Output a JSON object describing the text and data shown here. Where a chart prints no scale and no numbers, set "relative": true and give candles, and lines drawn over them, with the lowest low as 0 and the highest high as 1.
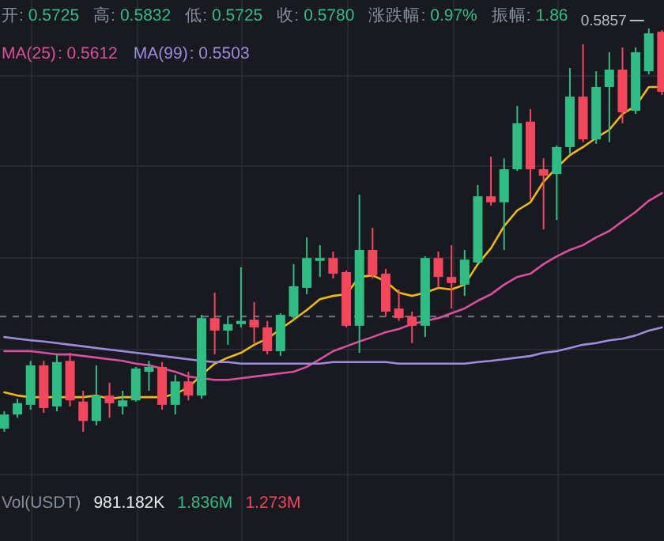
{
  "chart_data": {
    "type": "candlestick",
    "relative": true,
    "grid": true,
    "categories": [
      null,
      null,
      null,
      null,
      null,
      null,
      null,
      null,
      null,
      null,
      null,
      null,
      null,
      null,
      null,
      null,
      null,
      null,
      null,
      null,
      null,
      null,
      null,
      null,
      null,
      null,
      null,
      null,
      null,
      null,
      null,
      null,
      null,
      null,
      null,
      null,
      null,
      null,
      null,
      null,
      null,
      null,
      null,
      null,
      null,
      null,
      null,
      null,
      null,
      null,
      null
    ],
    "ohlc": [
      [
        0.008,
        0.051,
        0,
        0.043
      ],
      [
        0.043,
        0.082,
        0.035,
        0.071
      ],
      [
        0.067,
        0.176,
        0.055,
        0.165
      ],
      [
        0.165,
        0.176,
        0.047,
        0.059
      ],
      [
        0.063,
        0.192,
        0.051,
        0.173
      ],
      [
        0.176,
        0.196,
        0.063,
        0.078
      ],
      [
        0.075,
        0.102,
        0,
        0.027
      ],
      [
        0.027,
        0.165,
        0.016,
        0.09
      ],
      [
        0.09,
        0.122,
        0.035,
        0.071
      ],
      [
        0.063,
        0.102,
        0.043,
        0.078
      ],
      [
        0.078,
        0.161,
        0.075,
        0.157
      ],
      [
        0.149,
        0.176,
        0.102,
        0.161
      ],
      [
        0.161,
        0.173,
        0.055,
        0.067
      ],
      [
        0.067,
        0.141,
        0.043,
        0.125
      ],
      [
        0.125,
        0.149,
        0.078,
        0.09
      ],
      [
        0.09,
        0.29,
        0.082,
        0.282
      ],
      [
        0.282,
        0.345,
        0.192,
        0.251
      ],
      [
        0.251,
        0.286,
        0.216,
        0.267
      ],
      [
        0.267,
        0.408,
        0.259,
        0.275
      ],
      [
        0.278,
        0.322,
        0.22,
        0.259
      ],
      [
        0.259,
        0.275,
        0.192,
        0.2
      ],
      [
        0.2,
        0.294,
        0.188,
        0.29
      ],
      [
        0.286,
        0.416,
        0.278,
        0.361
      ],
      [
        0.357,
        0.482,
        0.341,
        0.431
      ],
      [
        0.424,
        0.463,
        0.384,
        0.431
      ],
      [
        0.431,
        0.447,
        0.38,
        0.392
      ],
      [
        0.396,
        0.4,
        0.259,
        0.263
      ],
      [
        0.263,
        0.588,
        0.196,
        0.451
      ],
      [
        0.451,
        0.506,
        0.38,
        0.388
      ],
      [
        0.392,
        0.404,
        0.286,
        0.298
      ],
      [
        0.306,
        0.353,
        0.275,
        0.282
      ],
      [
        0.286,
        0.298,
        0.22,
        0.263
      ],
      [
        0.263,
        0.435,
        0.235,
        0.431
      ],
      [
        0.431,
        0.447,
        0.357,
        0.384
      ],
      [
        0.384,
        0.463,
        0.306,
        0.369
      ],
      [
        0.365,
        0.451,
        0.337,
        0.427
      ],
      [
        0.42,
        0.612,
        0.416,
        0.584
      ],
      [
        0.584,
        0.682,
        0.561,
        0.569
      ],
      [
        0.569,
        0.678,
        0.451,
        0.651
      ],
      [
        0.651,
        0.808,
        0.647,
        0.765
      ],
      [
        0.769,
        0.8,
        0.576,
        0.651
      ],
      [
        0.651,
        0.678,
        0.502,
        0.635
      ],
      [
        0.639,
        0.71,
        0.525,
        0.706
      ],
      [
        0.706,
        0.902,
        0.69,
        0.831
      ],
      [
        0.831,
        0.961,
        0.718,
        0.725
      ],
      [
        0.725,
        0.894,
        0.714,
        0.855
      ],
      [
        0.855,
        0.941,
        0.718,
        0.898
      ],
      [
        0.898,
        0.953,
        0.765,
        0.792
      ],
      [
        0.796,
        0.953,
        0.788,
        0.941
      ],
      [
        0.894,
        1,
        0.886,
        0.988
      ],
      [
        0.992,
        0.996,
        0.835,
        0.843
      ]
    ],
    "series": [
      {
        "type": "line",
        "color": "#f0b90b",
        "values": [
          0.098,
          0.09,
          0.086,
          0.086,
          0.086,
          0.086,
          0.086,
          0.09,
          0.082,
          0.086,
          0.086,
          0.086,
          0.086,
          0.094,
          0.11,
          0.141,
          0.169,
          0.184,
          0.196,
          0.216,
          0.231,
          0.255,
          0.278,
          0.302,
          0.329,
          0.337,
          0.341,
          0.384,
          0.388,
          0.373,
          0.345,
          0.337,
          0.345,
          0.357,
          0.353,
          0.365,
          0.416,
          0.455,
          0.51,
          0.549,
          0.569,
          0.62,
          0.655,
          0.686,
          0.706,
          0.729,
          0.749,
          0.788,
          0.808,
          0.855,
          0.855
        ]
      },
      {
        "type": "line",
        "name": "MA(25)",
        "color": "#d9509e",
        "values": [
          0.2,
          0.2,
          0.2,
          0.196,
          0.192,
          0.192,
          0.188,
          0.184,
          0.18,
          0.176,
          0.169,
          0.165,
          0.157,
          0.149,
          0.137,
          0.133,
          0.129,
          0.129,
          0.133,
          0.137,
          0.141,
          0.145,
          0.149,
          0.161,
          0.18,
          0.2,
          0.212,
          0.224,
          0.235,
          0.247,
          0.255,
          0.267,
          0.275,
          0.282,
          0.294,
          0.306,
          0.325,
          0.341,
          0.365,
          0.384,
          0.392,
          0.416,
          0.435,
          0.451,
          0.463,
          0.482,
          0.498,
          0.522,
          0.545,
          0.573,
          0.592
        ]
      },
      {
        "type": "line",
        "name": "MA(99)",
        "color": "#a08ae0",
        "values": [
          0.235,
          0.231,
          0.227,
          0.224,
          0.22,
          0.216,
          0.212,
          0.208,
          0.204,
          0.2,
          0.196,
          0.192,
          0.188,
          0.184,
          0.18,
          0.176,
          0.173,
          0.173,
          0.169,
          0.169,
          0.169,
          0.169,
          0.169,
          0.169,
          0.169,
          0.173,
          0.173,
          0.173,
          0.173,
          0.173,
          0.169,
          0.169,
          0.169,
          0.169,
          0.169,
          0.169,
          0.173,
          0.176,
          0.18,
          0.184,
          0.188,
          0.196,
          0.2,
          0.208,
          0.216,
          0.22,
          0.227,
          0.231,
          0.239,
          0.251,
          0.259
        ]
      }
    ],
    "ref_lines": [
      {
        "axis": "y",
        "value": 0.286,
        "color": "#6b6f76",
        "line_style": "dashed"
      }
    ],
    "annotations": [
      "开:",
      "0.5725",
      "高:",
      "0.5832",
      "低:",
      "0.5725",
      "收:",
      "0.5780",
      "涨跌幅:",
      "0.97%",
      "振幅:",
      "1.86",
      "0.5857",
      "Vol(USDT)",
      "981.182K",
      "1.836M",
      "1.273M",
      ": 0.5612",
      ": 0.5503"
    ]
  }
}
